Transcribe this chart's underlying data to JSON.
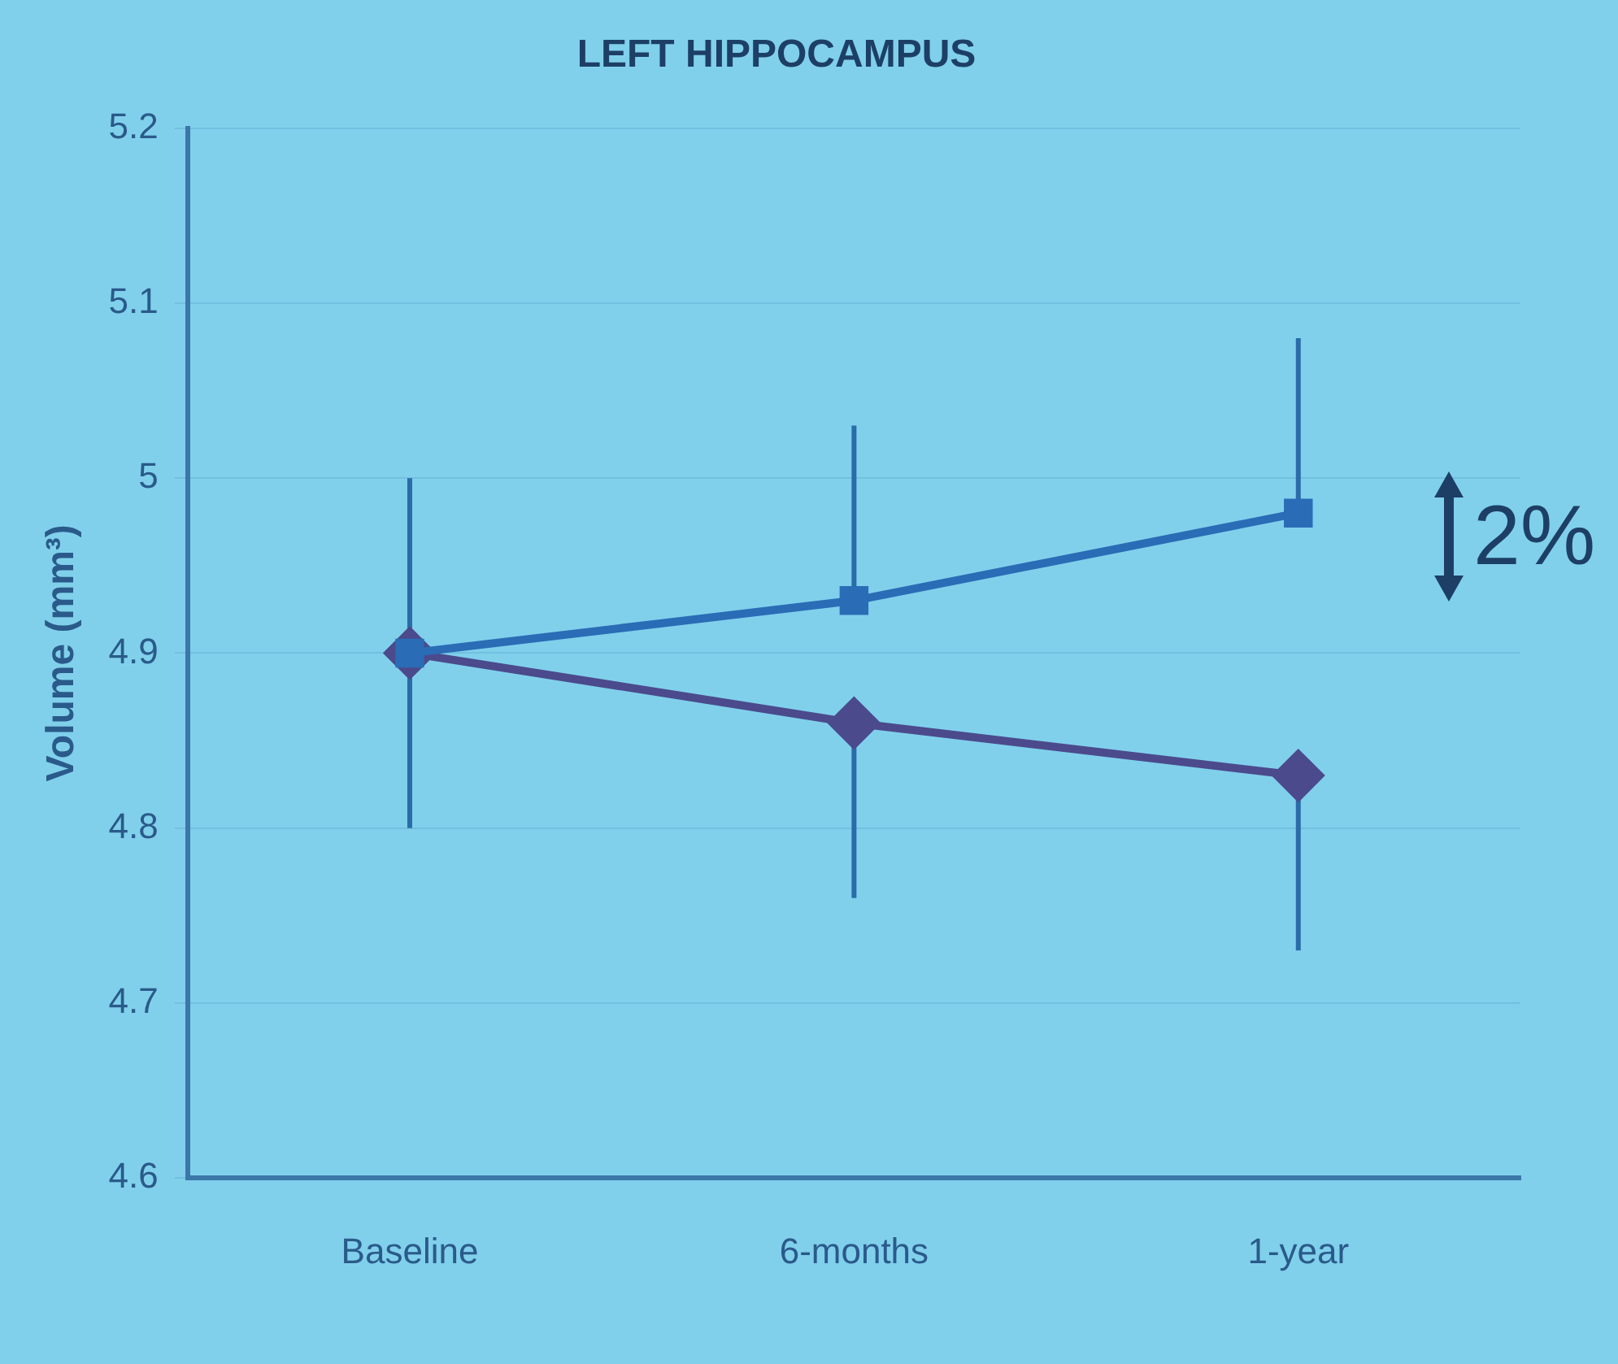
{
  "chart_data": {
    "type": "line",
    "title": "LEFT HIPPOCAMPUS",
    "ylabel": "Volume (mm³)",
    "categories": [
      "Baseline",
      "6-months",
      "1-year"
    ],
    "series": [
      {
        "color": "#2a6cb5",
        "values": [
          4.9,
          4.93,
          4.98
        ],
        "errors": [
          [
            4.9,
            5.0
          ],
          [
            4.93,
            5.03
          ],
          [
            4.98,
            5.08
          ]
        ],
        "marker": "square"
      },
      {
        "color": "#4b4a8c",
        "values": [
          4.9,
          4.86,
          4.83
        ],
        "errors": [
          [
            4.8,
            4.9
          ],
          [
            4.76,
            4.86
          ],
          [
            4.73,
            4.83
          ]
        ],
        "marker": "diamond"
      }
    ],
    "ylim": [
      4.6,
      5.2
    ],
    "yticks": [
      4.6,
      4.7,
      4.8,
      4.9,
      5,
      5.1,
      5.2
    ],
    "grid": "y",
    "legend": false,
    "line_style": "solid",
    "annotations": [
      "2%"
    ]
  }
}
